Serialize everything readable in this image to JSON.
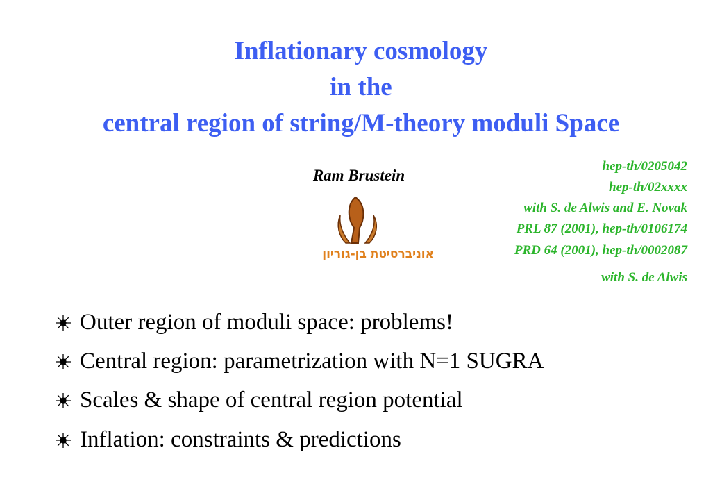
{
  "title": [
    "Inflationary cosmology",
    "in the",
    "central region of string/M-theory moduli Space"
  ],
  "author": "Ram Brustein",
  "university": "אוניברסיטת בן-גוריון",
  "references": [
    "hep-th/0205042",
    "hep-th/02xxxx",
    "with S. de Alwis and E. Novak",
    "PRL 87 (2001), hep-th/0106174",
    "PRD 64 (2001), hep-th/0002087",
    "with S. de Alwis"
  ],
  "bullets": [
    "Outer region of moduli space: problems!",
    "Central region: parametrization with N=1 SUGRA",
    "Scales & shape of central region potential",
    "Inflation: constraints & predictions"
  ]
}
